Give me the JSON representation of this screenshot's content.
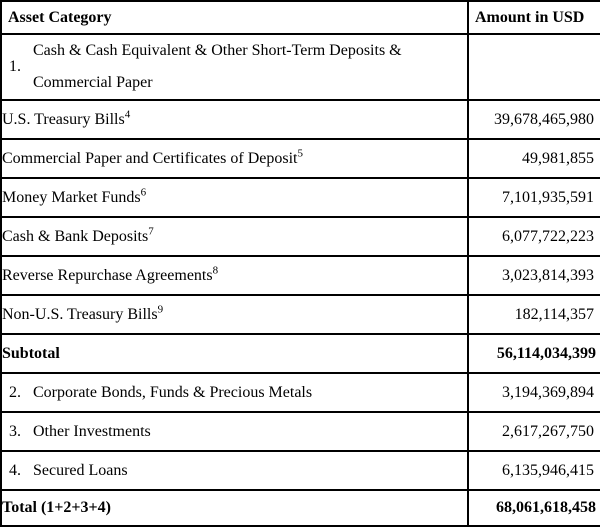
{
  "header": {
    "asset_col": "Asset Category",
    "amount_col": "Amount in USD"
  },
  "rows": [
    {
      "type": "item",
      "num": "1.",
      "label": "Cash & Cash Equivalent & Other Short-Term Deposits & Commercial Paper",
      "amount": ""
    },
    {
      "type": "sub",
      "label": "U.S. Treasury Bills",
      "footnote": "4",
      "amount": "39,678,465,980"
    },
    {
      "type": "sub",
      "label": "Commercial Paper and Certificates of Deposit",
      "footnote": "5",
      "amount": "49,981,855"
    },
    {
      "type": "sub",
      "label": "Money Market Funds",
      "footnote": "6",
      "amount": "7,101,935,591"
    },
    {
      "type": "sub",
      "label": "Cash & Bank Deposits",
      "footnote": "7",
      "amount": "6,077,722,223"
    },
    {
      "type": "sub",
      "label": "Reverse Repurchase Agreements",
      "footnote": "8",
      "amount": "3,023,814,393"
    },
    {
      "type": "sub",
      "label": "Non-U.S. Treasury Bills",
      "footnote": "9",
      "amount": "182,114,357"
    },
    {
      "type": "total",
      "label": "Subtotal",
      "amount": "56,114,034,399"
    },
    {
      "type": "item",
      "num": "2.",
      "label": "Corporate Bonds, Funds & Precious Metals",
      "amount": "3,194,369,894"
    },
    {
      "type": "item",
      "num": "3.",
      "label": "Other Investments",
      "amount": "2,617,267,750"
    },
    {
      "type": "item",
      "num": "4.",
      "label": "Secured Loans",
      "amount": "6,135,946,415"
    },
    {
      "type": "total",
      "label": "Total (1+2+3+4)",
      "amount": "68,061,618,458"
    }
  ],
  "colors": {
    "border": "#000000",
    "text": "#000000",
    "background": "#ffffff"
  }
}
